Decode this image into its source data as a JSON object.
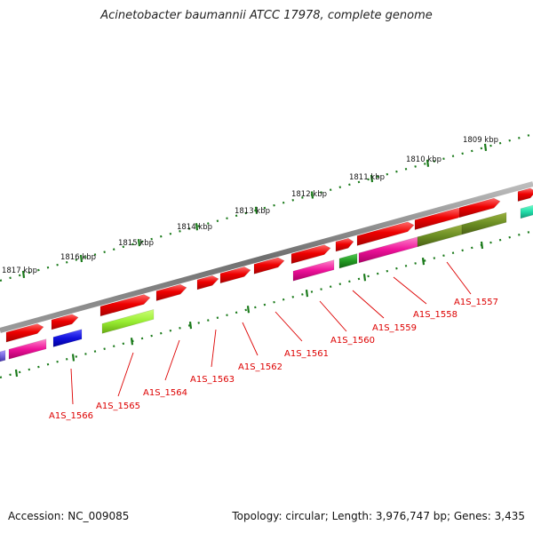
{
  "title": "Acinetobacter baumannii ATCC 17978, complete genome",
  "footer": {
    "accession": "Accession: NC_009085",
    "summary": "Topology: circular; Length: 3,976,747 bp; Genes: 3,435"
  },
  "scale_labels": [
    "1809 kbp",
    "1810 kbp",
    "1811 kbp",
    "1812 kbp",
    "1813 kbp",
    "1814 kbp",
    "1815 kbp",
    "1816 kbp",
    "1817 kbp"
  ],
  "gene_labels": [
    "A1S_1557",
    "A1S_1558",
    "A1S_1559",
    "A1S_1560",
    "A1S_1561",
    "A1S_1562",
    "A1S_1563",
    "A1S_1564",
    "A1S_1565",
    "A1S_1566"
  ],
  "colors": {
    "backbone": "#7a7a7a",
    "forward_gene": "#ee0000",
    "cog_magenta": "#ee1199",
    "cog_olive": "#6b8e23",
    "cog_lime": "#99ee33",
    "cog_blue": "#1111dd",
    "cog_green": "#229922",
    "cog_teal": "#22ddaa",
    "cog_purple": "#7766dd",
    "tick": "#1a7a1a",
    "label": "#dd0000"
  }
}
